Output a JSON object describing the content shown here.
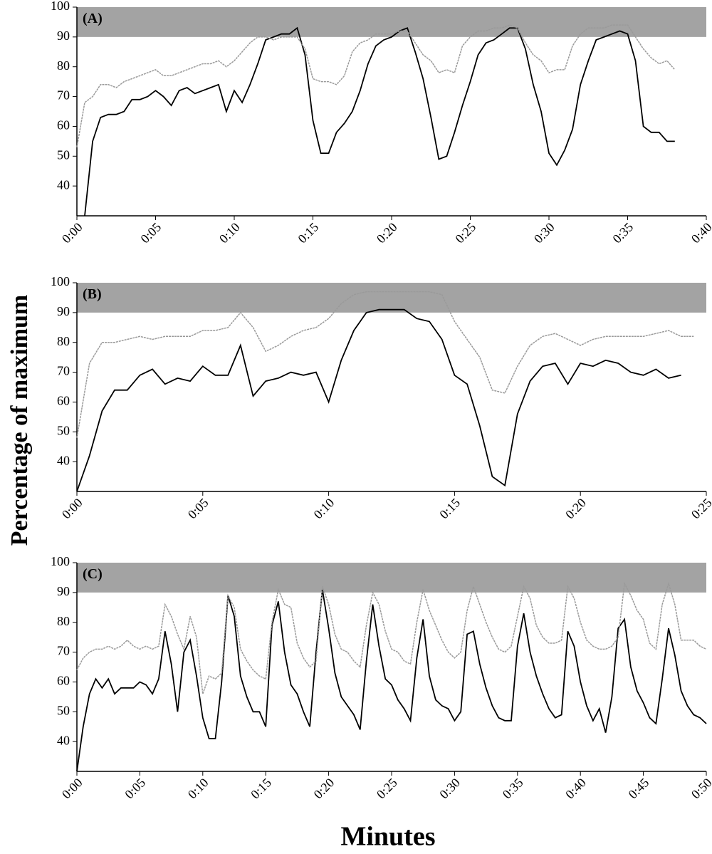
{
  "ylabel": "Percentage of maximum",
  "xlabel": "Minutes",
  "chart_data": [
    {
      "type": "line",
      "label": "(A)",
      "shaded_range": [
        90,
        100
      ],
      "x": [
        0,
        0.5,
        1,
        1.5,
        2,
        2.5,
        3,
        3.5,
        4,
        4.5,
        5,
        5.5,
        6,
        6.5,
        7,
        7.5,
        8,
        8.5,
        9,
        9.5,
        10,
        10.5,
        11,
        11.5,
        12,
        12.5,
        13,
        13.5,
        14,
        14.5,
        15,
        15.5,
        16,
        16.5,
        17,
        17.5,
        18,
        18.5,
        19,
        19.5,
        20,
        20.5,
        21,
        21.5,
        22,
        22.5,
        23,
        23.5,
        24,
        24.5,
        25,
        25.5,
        26,
        26.5,
        27,
        27.5,
        28,
        28.5,
        29,
        29.5,
        30,
        30.5,
        31,
        31.5,
        32,
        32.5,
        33,
        33.5,
        34,
        34.5,
        35,
        35.5,
        36,
        36.5,
        37,
        37.5,
        38
      ],
      "series": [
        {
          "color": "#000000",
          "values": [
            null,
            30,
            55,
            63,
            64,
            64,
            65,
            69,
            69,
            70,
            72,
            70,
            67,
            72,
            73,
            71,
            72,
            73,
            74,
            65,
            72,
            68,
            74,
            81,
            89,
            90,
            91,
            91,
            93,
            84,
            62,
            51,
            51,
            58,
            61,
            65,
            72,
            81,
            87,
            89,
            90,
            92,
            93,
            85,
            76,
            63,
            49,
            50,
            58,
            67,
            75,
            84,
            88,
            89,
            91,
            93,
            93,
            86,
            74,
            65,
            51,
            47,
            52,
            59,
            74,
            82,
            89,
            90,
            91,
            92,
            91,
            82,
            60,
            58,
            58,
            55,
            55
          ]
        },
        {
          "color": "#9a9a9a",
          "values": [
            53,
            68,
            70,
            74,
            74,
            73,
            75,
            76,
            77,
            78,
            79,
            77,
            77,
            78,
            79,
            80,
            81,
            81,
            82,
            80,
            82,
            85,
            88,
            90,
            90,
            89,
            90,
            90,
            90,
            86,
            76,
            75,
            75,
            74,
            77,
            85,
            88,
            89,
            91,
            91,
            91,
            92,
            92,
            88,
            84,
            82,
            78,
            79,
            78,
            87,
            90,
            92,
            92,
            93,
            93,
            94,
            93,
            88,
            84,
            82,
            78,
            79,
            79,
            87,
            91,
            93,
            93,
            93,
            94,
            94,
            94,
            90,
            86,
            83,
            81,
            82,
            79
          ]
        }
      ],
      "xlim": [
        0,
        40
      ],
      "ylim": [
        30,
        100
      ],
      "yticks": [
        40,
        50,
        60,
        70,
        80,
        90,
        100
      ],
      "xticks": [
        {
          "value": 0,
          "label": "0:00"
        },
        {
          "value": 5,
          "label": "0:05"
        },
        {
          "value": 10,
          "label": "0:10"
        },
        {
          "value": 15,
          "label": "0:15"
        },
        {
          "value": 20,
          "label": "0:20"
        },
        {
          "value": 25,
          "label": "0:25"
        },
        {
          "value": 30,
          "label": "0:30"
        },
        {
          "value": 35,
          "label": "0:35"
        },
        {
          "value": 40,
          "label": "0:40"
        }
      ]
    },
    {
      "type": "line",
      "label": "(B)",
      "shaded_range": [
        90,
        100
      ],
      "x": [
        0,
        0.5,
        1,
        1.5,
        2,
        2.5,
        3,
        3.5,
        4,
        4.5,
        5,
        5.5,
        6,
        6.5,
        7,
        7.5,
        8,
        8.5,
        9,
        9.5,
        10,
        10.5,
        11,
        11.5,
        12,
        12.5,
        13,
        13.5,
        14,
        14.5,
        15,
        15.5,
        16,
        16.5,
        17,
        17.5,
        18,
        18.5,
        19,
        19.5,
        20,
        20.5,
        21,
        21.5,
        22,
        22.5,
        23,
        23.5,
        24,
        24.5
      ],
      "series": [
        {
          "color": "#000000",
          "values": [
            30,
            42,
            57,
            64,
            64,
            69,
            71,
            66,
            68,
            67,
            72,
            69,
            69,
            79,
            62,
            67,
            68,
            70,
            69,
            70,
            60,
            74,
            84,
            90,
            91,
            91,
            91,
            88,
            87,
            81,
            69,
            66,
            52,
            35,
            32,
            56,
            67,
            72,
            73,
            66,
            73,
            72,
            74,
            73,
            70,
            69,
            71,
            68,
            69,
            null
          ]
        },
        {
          "color": "#9a9a9a",
          "values": [
            48,
            73,
            80,
            80,
            81,
            82,
            81,
            82,
            82,
            82,
            84,
            84,
            85,
            90,
            85,
            77,
            79,
            82,
            84,
            85,
            88,
            93,
            96,
            97,
            97,
            97,
            97,
            97,
            97,
            96,
            87,
            81,
            75,
            64,
            63,
            72,
            79,
            82,
            83,
            81,
            79,
            81,
            82,
            82,
            82,
            82,
            83,
            84,
            82,
            82
          ]
        }
      ],
      "xlim": [
        0,
        25
      ],
      "ylim": [
        30,
        100
      ],
      "yticks": [
        40,
        50,
        60,
        70,
        80,
        90,
        100
      ],
      "xticks": [
        {
          "value": 0,
          "label": "0:00"
        },
        {
          "value": 5,
          "label": "0:05"
        },
        {
          "value": 10,
          "label": "0:10"
        },
        {
          "value": 15,
          "label": "0:15"
        },
        {
          "value": 20,
          "label": "0:20"
        },
        {
          "value": 25,
          "label": "0:25"
        }
      ]
    },
    {
      "type": "line",
      "label": "(C)",
      "shaded_range": [
        90,
        100
      ],
      "x": [
        0,
        0.5,
        1,
        1.5,
        2,
        2.5,
        3,
        3.5,
        4,
        4.5,
        5,
        5.5,
        6,
        6.5,
        7,
        7.5,
        8,
        8.5,
        9,
        9.5,
        10,
        10.5,
        11,
        11.5,
        12,
        12.5,
        13,
        13.5,
        14,
        14.5,
        15,
        15.5,
        16,
        16.5,
        17,
        17.5,
        18,
        18.5,
        19,
        19.5,
        20,
        20.5,
        21,
        21.5,
        22,
        22.5,
        23,
        23.5,
        24,
        24.5,
        25,
        25.5,
        26,
        26.5,
        27,
        27.5,
        28,
        28.5,
        29,
        29.5,
        30,
        30.5,
        31,
        31.5,
        32,
        32.5,
        33,
        33.5,
        34,
        34.5,
        35,
        35.5,
        36,
        36.5,
        37,
        37.5,
        38,
        38.5,
        39,
        39.5,
        40,
        40.5,
        41,
        41.5,
        42,
        42.5,
        43,
        43.5,
        44,
        44.5,
        45,
        45.5,
        46,
        46.5,
        47,
        47.5,
        48,
        48.5,
        49,
        49.5,
        50
      ],
      "series": [
        {
          "color": "#000000",
          "values": [
            30,
            45,
            56,
            61,
            58,
            61,
            56,
            58,
            58,
            58,
            60,
            59,
            56,
            61,
            77,
            66,
            50,
            70,
            74,
            62,
            48,
            41,
            41,
            60,
            89,
            82,
            62,
            55,
            50,
            50,
            45,
            79,
            87,
            70,
            59,
            56,
            50,
            45,
            70,
            91,
            78,
            63,
            55,
            52,
            49,
            44,
            67,
            86,
            72,
            61,
            59,
            54,
            51,
            47,
            68,
            81,
            62,
            54,
            52,
            51,
            47,
            50,
            76,
            77,
            66,
            58,
            52,
            48,
            47,
            47,
            72,
            83,
            70,
            62,
            56,
            51,
            48,
            49,
            77,
            72,
            60,
            52,
            47,
            51,
            43,
            55,
            78,
            81,
            65,
            57,
            53,
            48,
            46,
            61,
            78,
            69,
            57,
            52,
            49,
            48,
            46
          ]
        },
        {
          "color": "#9a9a9a",
          "values": [
            64,
            68,
            70,
            71,
            71,
            72,
            71,
            72,
            74,
            72,
            71,
            72,
            71,
            72,
            86,
            82,
            76,
            71,
            82,
            75,
            56,
            62,
            61,
            63,
            89,
            85,
            71,
            67,
            64,
            62,
            61,
            80,
            91,
            86,
            85,
            73,
            68,
            65,
            67,
            92,
            86,
            76,
            71,
            70,
            67,
            65,
            79,
            90,
            86,
            77,
            71,
            70,
            67,
            66,
            80,
            91,
            84,
            79,
            74,
            70,
            68,
            70,
            84,
            92,
            86,
            80,
            75,
            71,
            70,
            72,
            82,
            92,
            88,
            79,
            75,
            73,
            73,
            74,
            92,
            88,
            80,
            74,
            72,
            71,
            71,
            72,
            75,
            93,
            89,
            84,
            81,
            73,
            71,
            86,
            93,
            86,
            74,
            74,
            74,
            72,
            71
          ]
        }
      ],
      "xlim": [
        0,
        50
      ],
      "ylim": [
        30,
        100
      ],
      "yticks": [
        40,
        50,
        60,
        70,
        80,
        90,
        100
      ],
      "xticks": [
        {
          "value": 0,
          "label": "0:00"
        },
        {
          "value": 5,
          "label": "0:05"
        },
        {
          "value": 10,
          "label": "0:10"
        },
        {
          "value": 15,
          "label": "0:15"
        },
        {
          "value": 20,
          "label": "0:20"
        },
        {
          "value": 25,
          "label": "0:25"
        },
        {
          "value": 30,
          "label": "0:30"
        },
        {
          "value": 35,
          "label": "0:35"
        },
        {
          "value": 40,
          "label": "0:40"
        },
        {
          "value": 45,
          "label": "0:45"
        },
        {
          "value": 50,
          "label": "0:50"
        }
      ]
    }
  ]
}
